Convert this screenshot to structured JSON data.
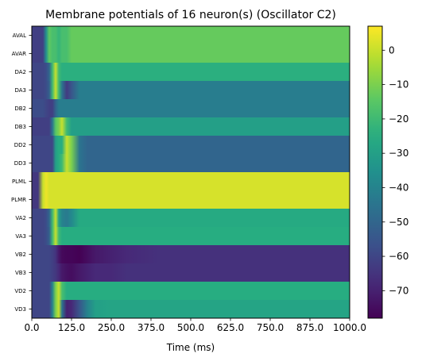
{
  "chart_data": {
    "type": "heatmap",
    "title": "Membrane potentials of 16 neuron(s) (Oscillator C2)",
    "xlabel": "Time (ms)",
    "ylabel": "",
    "xlim": [
      0,
      1000
    ],
    "x_ticks": [
      "0.0",
      "125.0",
      "250.0",
      "375.0",
      "500.0",
      "625.0",
      "750.0",
      "875.0",
      "1000.0"
    ],
    "x_tick_values": [
      0,
      125,
      250,
      375,
      500,
      625,
      750,
      875,
      1000
    ],
    "neurons": [
      "AVAL",
      "AVAR",
      "DA2",
      "DA3",
      "DB2",
      "DB3",
      "DD2",
      "DD3",
      "PLML",
      "PLMR",
      "VA2",
      "VA3",
      "VB2",
      "VB3",
      "VD2",
      "VD3"
    ],
    "colorbar": {
      "colormap": "viridis",
      "range": [
        -78,
        7
      ],
      "ticks": [
        "0",
        "−10",
        "−20",
        "−30",
        "−40",
        "−50",
        "−60",
        "−70"
      ],
      "tick_values": [
        0,
        -10,
        -20,
        -30,
        -40,
        -50,
        -60,
        -70
      ]
    },
    "time_points": [
      0,
      20,
      35,
      45,
      55,
      65,
      75,
      85,
      95,
      110,
      125,
      150,
      175,
      200,
      250,
      300,
      400,
      500,
      1000
    ],
    "series": [
      {
        "name": "AVAL",
        "values": [
          -62,
          -62,
          -62,
          -36,
          -14,
          -18,
          -18,
          -22,
          -18,
          -18,
          -13,
          -13,
          -13,
          -13,
          -13,
          -13,
          -13,
          -13,
          -13
        ]
      },
      {
        "name": "AVAR",
        "values": [
          -62,
          -62,
          -62,
          -36,
          -14,
          -18,
          -18,
          -22,
          -18,
          -18,
          -13,
          -13,
          -13,
          -13,
          -13,
          -13,
          -13,
          -13,
          -13
        ]
      },
      {
        "name": "DA2",
        "values": [
          -60,
          -60,
          -60,
          -58,
          -50,
          -20,
          0,
          -20,
          -24,
          -24,
          -24,
          -24,
          -24,
          -24,
          -24,
          -24,
          -24,
          -24,
          -24
        ]
      },
      {
        "name": "DA3",
        "values": [
          -60,
          -60,
          -60,
          -58,
          -52,
          -20,
          0,
          -20,
          -45,
          -63,
          -55,
          -42,
          -42,
          -42,
          -42,
          -42,
          -42,
          -42,
          -42
        ]
      },
      {
        "name": "DB2",
        "values": [
          -58,
          -58,
          -58,
          -60,
          -62,
          -62,
          -50,
          -42,
          -42,
          -42,
          -42,
          -42,
          -42,
          -42,
          -42,
          -42,
          -42,
          -42,
          -42
        ]
      },
      {
        "name": "DB3",
        "values": [
          -62,
          -62,
          -62,
          -62,
          -62,
          -45,
          -15,
          -10,
          0,
          -20,
          -30,
          -30,
          -30,
          -30,
          -30,
          -30,
          -30,
          -30,
          -30
        ]
      },
      {
        "name": "DD2",
        "values": [
          -60,
          -60,
          -60,
          -60,
          -60,
          -60,
          -30,
          -25,
          -25,
          0,
          -10,
          -45,
          -50,
          -50,
          -50,
          -50,
          -50,
          -50,
          -50
        ]
      },
      {
        "name": "DD3",
        "values": [
          -60,
          -60,
          -60,
          -60,
          -60,
          -60,
          -30,
          -25,
          -20,
          0,
          -10,
          -45,
          -50,
          -50,
          -50,
          -50,
          -50,
          -50,
          -50
        ]
      },
      {
        "name": "PLML",
        "values": [
          -64,
          -64,
          0,
          5,
          2,
          2,
          2,
          2,
          2,
          2,
          2,
          2,
          2,
          2,
          2,
          2,
          2,
          2,
          2
        ]
      },
      {
        "name": "PLMR",
        "values": [
          -64,
          -64,
          0,
          5,
          2,
          2,
          2,
          2,
          2,
          2,
          2,
          2,
          2,
          2,
          2,
          2,
          2,
          2,
          2
        ]
      },
      {
        "name": "VA2",
        "values": [
          -60,
          -60,
          -60,
          -58,
          -50,
          -20,
          0,
          -30,
          -40,
          -43,
          -38,
          -26,
          -26,
          -26,
          -26,
          -26,
          -26,
          -26,
          -26
        ]
      },
      {
        "name": "VA3",
        "values": [
          -60,
          -60,
          -60,
          -58,
          -52,
          -20,
          0,
          -20,
          -25,
          -25,
          -25,
          -25,
          -25,
          -25,
          -25,
          -25,
          -25,
          -25,
          -25
        ]
      },
      {
        "name": "VB2",
        "values": [
          -60,
          -60,
          -60,
          -60,
          -60,
          -62,
          -65,
          -72,
          -76,
          -77,
          -77,
          -78,
          -75,
          -72,
          -70,
          -68,
          -66,
          -66,
          -66
        ]
      },
      {
        "name": "VB3",
        "values": [
          -60,
          -60,
          -60,
          -60,
          -60,
          -62,
          -64,
          -68,
          -72,
          -74,
          -75,
          -72,
          -70,
          -68,
          -68,
          -66,
          -66,
          -66,
          -66
        ]
      },
      {
        "name": "VD2",
        "values": [
          -60,
          -60,
          -60,
          -60,
          -60,
          -40,
          -10,
          0,
          -18,
          -25,
          -25,
          -25,
          -25,
          -25,
          -25,
          -25,
          -25,
          -25,
          -25
        ]
      },
      {
        "name": "VD3",
        "values": [
          -60,
          -60,
          -60,
          -60,
          -60,
          -40,
          -10,
          0,
          -45,
          -70,
          -68,
          -55,
          -40,
          -30,
          -28,
          -28,
          -28,
          -28,
          -28
        ]
      }
    ]
  }
}
